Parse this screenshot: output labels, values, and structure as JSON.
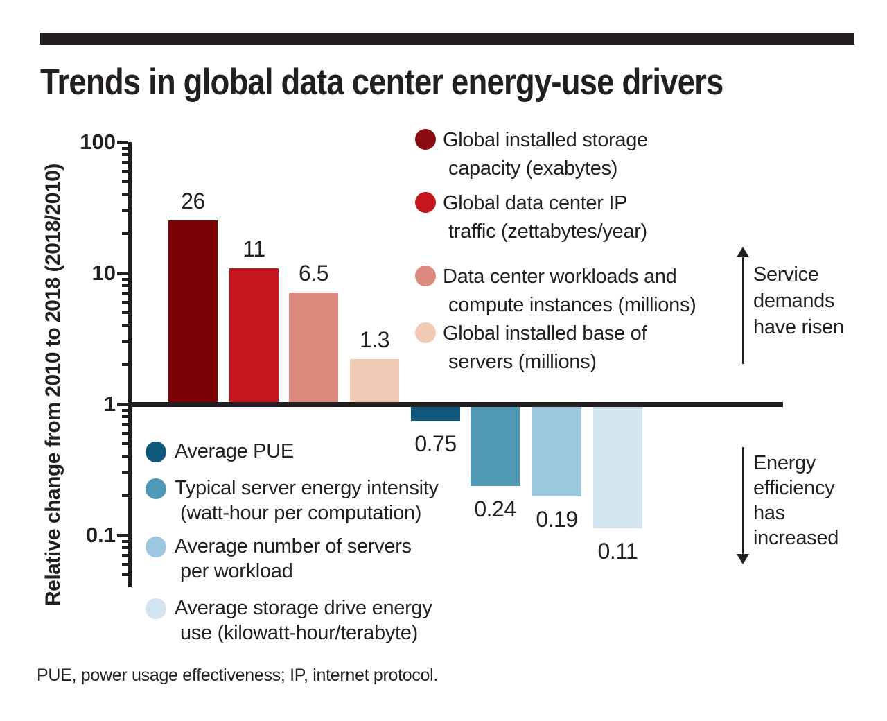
{
  "title": "Trends in global data center energy-use drivers",
  "footnote": "PUE, power usage effectiveness; IP, internet protocol.",
  "y_axis": {
    "label": "Relative change from 2010 to 2018 (2018/2010)",
    "tick_labels": [
      "100",
      "10",
      "1",
      "0.1"
    ]
  },
  "annotations": {
    "service_demands": {
      "lines": [
        "Service",
        "demands",
        "have risen"
      ],
      "direction": "up"
    },
    "energy_efficiency": {
      "lines": [
        "Energy",
        "efficiency",
        "has",
        "increased"
      ],
      "direction": "down"
    }
  },
  "chart_data": {
    "type": "bar",
    "yscale": "log",
    "ylabel": "Relative change from 2010 to 2018 (2018/2010)",
    "yticks": [
      100,
      10,
      1,
      0.1
    ],
    "ylim": [
      0.05,
      100
    ],
    "baseline": 1,
    "grid": false,
    "series": [
      {
        "name": "Global installed storage capacity (exabytes)",
        "value": 26,
        "label": "26",
        "color": "#7c0305",
        "group": "service demands have risen"
      },
      {
        "name": "Global data center IP traffic (zettabytes/year)",
        "value": 11,
        "label": "11",
        "color": "#c4161c",
        "group": "service demands have risen"
      },
      {
        "name": "Data center workloads and compute instances (millions)",
        "value": 6.5,
        "label": "6.5",
        "color": "#dd8a7e",
        "group": "service demands have risen"
      },
      {
        "name": "Global installed base of servers (millions)",
        "value": 1.3,
        "label": "1.3",
        "color": "#f2c9b4",
        "group": "service demands have risen"
      },
      {
        "name": "Average PUE",
        "value": 0.75,
        "label": "0.75",
        "color": "#0f587c",
        "group": "energy efficiency has increased"
      },
      {
        "name": "Typical server energy intensity (watt-hour per computation)",
        "value": 0.24,
        "label": "0.24",
        "color": "#4f99b5",
        "group": "energy efficiency has increased"
      },
      {
        "name": "Average number of servers per workload",
        "value": 0.19,
        "label": "0.19",
        "color": "#9cc7df",
        "group": "energy efficiency has increased"
      },
      {
        "name": "Average storage drive energy use (kilowatt-hour/terabyte)",
        "value": 0.11,
        "label": "0.11",
        "color": "#d2e4f0",
        "group": "energy efficiency has increased"
      }
    ]
  },
  "legend_top": [
    {
      "color": "#8a0c10",
      "lines": [
        "Global installed storage",
        "capacity (exabytes)"
      ]
    },
    {
      "color": "#c4161c",
      "lines": [
        "Global data center IP",
        "traffic (zettabytes/year)"
      ]
    },
    {
      "color": "#dd8a7e",
      "lines": [
        "Data center workloads and",
        "compute instances (millions)"
      ]
    },
    {
      "color": "#f2c9b4",
      "lines": [
        "Global installed base of",
        "servers (millions)"
      ]
    }
  ],
  "legend_bottom": [
    {
      "color": "#0f587c",
      "lines": [
        "Average PUE"
      ]
    },
    {
      "color": "#4f99b5",
      "lines": [
        "Typical server energy intensity",
        "(watt-hour per computation)"
      ]
    },
    {
      "color": "#9cc7df",
      "lines": [
        "Average number of servers",
        "per workload"
      ]
    },
    {
      "color": "#d2e4f0",
      "lines": [
        "Average storage drive energy",
        "use (kilowatt-hour/terabyte)"
      ]
    }
  ]
}
